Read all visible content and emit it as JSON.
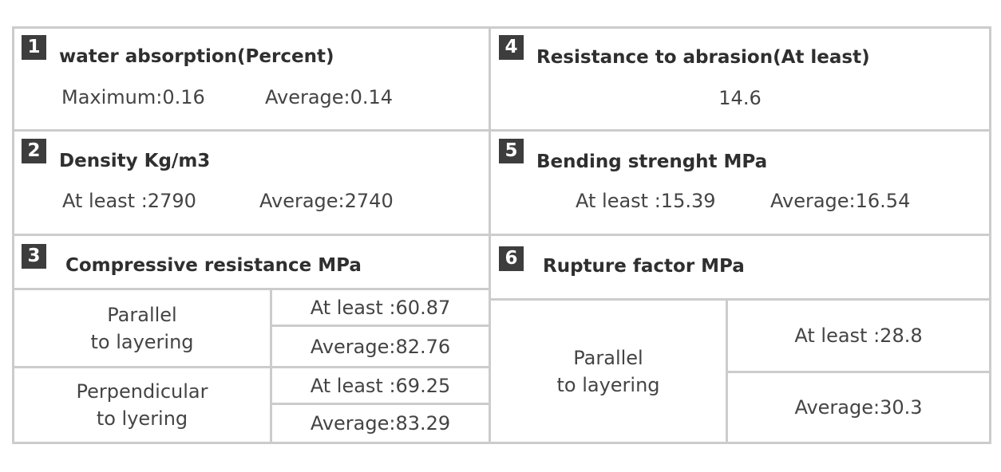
{
  "sections": [
    {
      "number": "1",
      "title": "water absorption(Percent)",
      "values": [
        "Maximum:0.16",
        "Average:0.14"
      ]
    },
    {
      "number": "2",
      "title": "Density Kg/m3",
      "values": [
        "At least :2790",
        "Average:2740"
      ]
    },
    {
      "number": "3",
      "title": "Compressive resistance MPa",
      "rows": [
        {
          "orientation": [
            "Parallel",
            "to layering"
          ],
          "values": [
            "At least :60.87",
            "Average:82.76"
          ]
        },
        {
          "orientation": [
            "Perpendicular",
            "to lyering"
          ],
          "values": [
            "At least :69.25",
            "Average:83.29"
          ]
        }
      ]
    },
    {
      "number": "4",
      "title": "Resistance to abrasion(At least)",
      "values": [
        "14.6"
      ]
    },
    {
      "number": "5",
      "title": "Bending strenght MPa",
      "values": [
        "At least :15.39",
        "Average:16.54"
      ]
    },
    {
      "number": "6",
      "title": "Rupture factor MPa",
      "rows": [
        {
          "orientation": [
            "Parallel",
            "to layering"
          ],
          "values": [
            "At least :28.8",
            "Average:30.3"
          ]
        }
      ]
    }
  ],
  "colors": {
    "border": "#cccccc",
    "badge": "#3d3d3d",
    "text": "#444444"
  }
}
